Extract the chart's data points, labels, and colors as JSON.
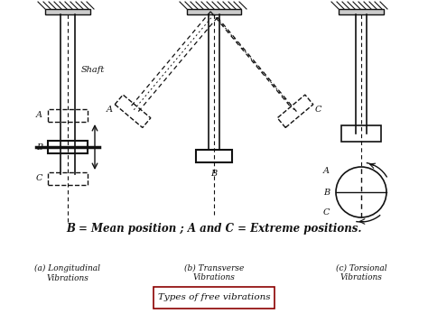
{
  "title": "B = Mean position ; A and C = Extreme positions.",
  "subtitle": "Types of free vibrations",
  "label_a": "(a) Longitudinal\nVibrations",
  "label_b": "(b) Transverse\nVibrations",
  "label_c": "(c) Torsional\nVibrations",
  "shaft_label": "Shaft",
  "bg_color": "#f0f0f0",
  "line_color": "#111111",
  "dashed_color": "#111111"
}
